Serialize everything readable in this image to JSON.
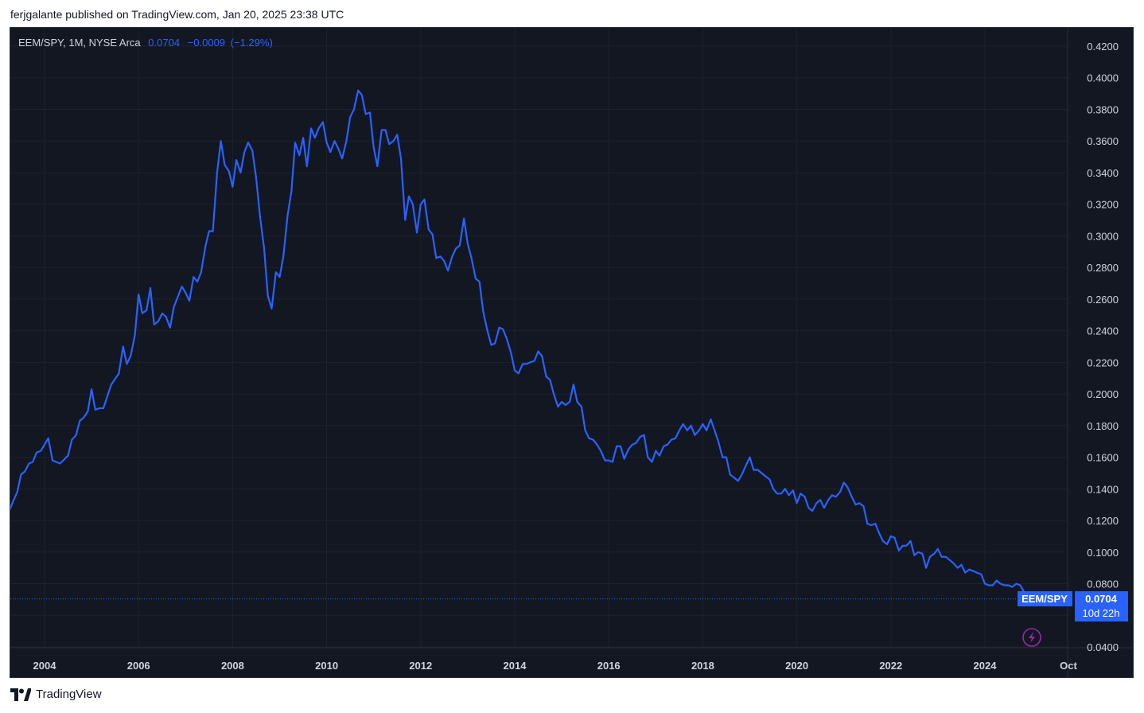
{
  "header": {
    "published_text": "ferjgalante published on TradingView.com, Jan 20, 2025 23:38 UTC"
  },
  "legend": {
    "symbol": "EEM/SPY, 1M, NYSE Arca",
    "last": "0.0704",
    "change": "−0.0009",
    "change_pct": "(−1.29%)"
  },
  "price_label": {
    "symbol": "EEM/SPY",
    "value": "0.0704",
    "countdown": "10d 22h"
  },
  "footer": {
    "brand": "TradingView"
  },
  "colors": {
    "background": "#131722",
    "line": "#2962ff",
    "grid": "#1e222d",
    "text": "#d1d4dc"
  },
  "chart_data": {
    "type": "line",
    "title": "",
    "xlabel": "",
    "ylabel": "",
    "xlim": [
      2003.25,
      2025.75
    ],
    "ylim": [
      0.04,
      0.43
    ],
    "y_ticks": [
      "0.4200",
      "0.4000",
      "0.3800",
      "0.3600",
      "0.3400",
      "0.3200",
      "0.3000",
      "0.2800",
      "0.2600",
      "0.2400",
      "0.2200",
      "0.2000",
      "0.1800",
      "0.1600",
      "0.1400",
      "0.1200",
      "0.1000",
      "0.0800",
      "0.0600",
      "0.0400"
    ],
    "x_ticks": [
      {
        "label": "2004",
        "x": 2004
      },
      {
        "label": "2006",
        "x": 2006
      },
      {
        "label": "2008",
        "x": 2008
      },
      {
        "label": "2010",
        "x": 2010
      },
      {
        "label": "2012",
        "x": 2012
      },
      {
        "label": "2014",
        "x": 2014
      },
      {
        "label": "2016",
        "x": 2016
      },
      {
        "label": "2018",
        "x": 2018
      },
      {
        "label": "2020",
        "x": 2020
      },
      {
        "label": "2022",
        "x": 2022
      },
      {
        "label": "2024",
        "x": 2024
      },
      {
        "label": "Oct",
        "x": 2025.75
      }
    ],
    "last_value": 0.0704,
    "grid": true,
    "series": [
      {
        "color": "#2962ff",
        "points": [
          [
            2003.25,
            0.126
          ],
          [
            2003.33,
            0.132
          ],
          [
            2003.42,
            0.138
          ],
          [
            2003.5,
            0.149
          ],
          [
            2003.58,
            0.151
          ],
          [
            2003.67,
            0.156
          ],
          [
            2003.75,
            0.157
          ],
          [
            2003.83,
            0.163
          ],
          [
            2003.92,
            0.164
          ],
          [
            2004.0,
            0.168
          ],
          [
            2004.08,
            0.172
          ],
          [
            2004.17,
            0.158
          ],
          [
            2004.33,
            0.156
          ],
          [
            2004.5,
            0.161
          ],
          [
            2004.58,
            0.171
          ],
          [
            2004.67,
            0.174
          ],
          [
            2004.75,
            0.183
          ],
          [
            2004.83,
            0.185
          ],
          [
            2004.92,
            0.189
          ],
          [
            2005.0,
            0.203
          ],
          [
            2005.08,
            0.19
          ],
          [
            2005.17,
            0.191
          ],
          [
            2005.25,
            0.191
          ],
          [
            2005.42,
            0.206
          ],
          [
            2005.58,
            0.213
          ],
          [
            2005.67,
            0.23
          ],
          [
            2005.75,
            0.219
          ],
          [
            2005.83,
            0.224
          ],
          [
            2005.92,
            0.237
          ],
          [
            2006.0,
            0.263
          ],
          [
            2006.08,
            0.251
          ],
          [
            2006.17,
            0.253
          ],
          [
            2006.25,
            0.267
          ],
          [
            2006.33,
            0.244
          ],
          [
            2006.42,
            0.246
          ],
          [
            2006.5,
            0.251
          ],
          [
            2006.58,
            0.249
          ],
          [
            2006.67,
            0.242
          ],
          [
            2006.75,
            0.255
          ],
          [
            2006.92,
            0.268
          ],
          [
            2007.0,
            0.264
          ],
          [
            2007.08,
            0.259
          ],
          [
            2007.17,
            0.274
          ],
          [
            2007.25,
            0.271
          ],
          [
            2007.33,
            0.277
          ],
          [
            2007.42,
            0.293
          ],
          [
            2007.5,
            0.303
          ],
          [
            2007.58,
            0.303
          ],
          [
            2007.67,
            0.34
          ],
          [
            2007.75,
            0.36
          ],
          [
            2007.83,
            0.345
          ],
          [
            2007.92,
            0.341
          ],
          [
            2008.0,
            0.331
          ],
          [
            2008.08,
            0.348
          ],
          [
            2008.17,
            0.34
          ],
          [
            2008.25,
            0.353
          ],
          [
            2008.33,
            0.359
          ],
          [
            2008.42,
            0.354
          ],
          [
            2008.5,
            0.337
          ],
          [
            2008.58,
            0.313
          ],
          [
            2008.67,
            0.292
          ],
          [
            2008.75,
            0.262
          ],
          [
            2008.83,
            0.254
          ],
          [
            2008.92,
            0.277
          ],
          [
            2009.0,
            0.274
          ],
          [
            2009.08,
            0.287
          ],
          [
            2009.17,
            0.313
          ],
          [
            2009.25,
            0.328
          ],
          [
            2009.33,
            0.359
          ],
          [
            2009.42,
            0.351
          ],
          [
            2009.5,
            0.362
          ],
          [
            2009.58,
            0.344
          ],
          [
            2009.67,
            0.368
          ],
          [
            2009.75,
            0.362
          ],
          [
            2009.83,
            0.368
          ],
          [
            2009.92,
            0.372
          ],
          [
            2010.0,
            0.359
          ],
          [
            2010.08,
            0.353
          ],
          [
            2010.17,
            0.36
          ],
          [
            2010.25,
            0.355
          ],
          [
            2010.33,
            0.349
          ],
          [
            2010.42,
            0.36
          ],
          [
            2010.5,
            0.375
          ],
          [
            2010.58,
            0.38
          ],
          [
            2010.67,
            0.392
          ],
          [
            2010.75,
            0.389
          ],
          [
            2010.83,
            0.377
          ],
          [
            2010.92,
            0.378
          ],
          [
            2011.0,
            0.356
          ],
          [
            2011.08,
            0.344
          ],
          [
            2011.17,
            0.367
          ],
          [
            2011.25,
            0.367
          ],
          [
            2011.33,
            0.358
          ],
          [
            2011.42,
            0.36
          ],
          [
            2011.5,
            0.364
          ],
          [
            2011.58,
            0.349
          ],
          [
            2011.67,
            0.31
          ],
          [
            2011.75,
            0.325
          ],
          [
            2011.83,
            0.32
          ],
          [
            2011.92,
            0.302
          ],
          [
            2012.0,
            0.32
          ],
          [
            2012.08,
            0.323
          ],
          [
            2012.17,
            0.304
          ],
          [
            2012.25,
            0.301
          ],
          [
            2012.33,
            0.286
          ],
          [
            2012.42,
            0.287
          ],
          [
            2012.5,
            0.284
          ],
          [
            2012.58,
            0.278
          ],
          [
            2012.67,
            0.287
          ],
          [
            2012.75,
            0.292
          ],
          [
            2012.83,
            0.294
          ],
          [
            2012.92,
            0.311
          ],
          [
            2013.0,
            0.295
          ],
          [
            2013.08,
            0.286
          ],
          [
            2013.17,
            0.273
          ],
          [
            2013.25,
            0.271
          ],
          [
            2013.33,
            0.252
          ],
          [
            2013.42,
            0.24
          ],
          [
            2013.5,
            0.231
          ],
          [
            2013.58,
            0.232
          ],
          [
            2013.67,
            0.242
          ],
          [
            2013.75,
            0.241
          ],
          [
            2013.83,
            0.235
          ],
          [
            2013.92,
            0.226
          ],
          [
            2014.0,
            0.215
          ],
          [
            2014.08,
            0.213
          ],
          [
            2014.17,
            0.219
          ],
          [
            2014.25,
            0.219
          ],
          [
            2014.33,
            0.22
          ],
          [
            2014.42,
            0.221
          ],
          [
            2014.5,
            0.227
          ],
          [
            2014.58,
            0.224
          ],
          [
            2014.67,
            0.211
          ],
          [
            2014.75,
            0.209
          ],
          [
            2014.83,
            0.2
          ],
          [
            2014.92,
            0.192
          ],
          [
            2015.0,
            0.195
          ],
          [
            2015.08,
            0.193
          ],
          [
            2015.17,
            0.195
          ],
          [
            2015.25,
            0.206
          ],
          [
            2015.33,
            0.195
          ],
          [
            2015.42,
            0.192
          ],
          [
            2015.5,
            0.177
          ],
          [
            2015.58,
            0.172
          ],
          [
            2015.67,
            0.171
          ],
          [
            2015.75,
            0.168
          ],
          [
            2015.83,
            0.164
          ],
          [
            2015.92,
            0.158
          ],
          [
            2016.0,
            0.158
          ],
          [
            2016.08,
            0.157
          ],
          [
            2016.17,
            0.167
          ],
          [
            2016.25,
            0.167
          ],
          [
            2016.33,
            0.159
          ],
          [
            2016.42,
            0.165
          ],
          [
            2016.5,
            0.168
          ],
          [
            2016.58,
            0.169
          ],
          [
            2016.67,
            0.173
          ],
          [
            2016.75,
            0.174
          ],
          [
            2016.83,
            0.16
          ],
          [
            2016.92,
            0.157
          ],
          [
            2017.0,
            0.164
          ],
          [
            2017.08,
            0.161
          ],
          [
            2017.17,
            0.167
          ],
          [
            2017.25,
            0.168
          ],
          [
            2017.33,
            0.171
          ],
          [
            2017.42,
            0.172
          ],
          [
            2017.5,
            0.177
          ],
          [
            2017.58,
            0.181
          ],
          [
            2017.67,
            0.177
          ],
          [
            2017.75,
            0.18
          ],
          [
            2017.83,
            0.174
          ],
          [
            2017.92,
            0.177
          ],
          [
            2018.0,
            0.181
          ],
          [
            2018.08,
            0.177
          ],
          [
            2018.17,
            0.184
          ],
          [
            2018.25,
            0.177
          ],
          [
            2018.33,
            0.17
          ],
          [
            2018.42,
            0.16
          ],
          [
            2018.5,
            0.16
          ],
          [
            2018.58,
            0.149
          ],
          [
            2018.67,
            0.147
          ],
          [
            2018.75,
            0.145
          ],
          [
            2018.83,
            0.149
          ],
          [
            2018.92,
            0.155
          ],
          [
            2019.0,
            0.16
          ],
          [
            2019.08,
            0.152
          ],
          [
            2019.17,
            0.152
          ],
          [
            2019.25,
            0.15
          ],
          [
            2019.33,
            0.148
          ],
          [
            2019.42,
            0.146
          ],
          [
            2019.5,
            0.14
          ],
          [
            2019.58,
            0.137
          ],
          [
            2019.67,
            0.137
          ],
          [
            2019.75,
            0.14
          ],
          [
            2019.83,
            0.136
          ],
          [
            2019.92,
            0.139
          ],
          [
            2020.0,
            0.131
          ],
          [
            2020.08,
            0.137
          ],
          [
            2020.17,
            0.135
          ],
          [
            2020.25,
            0.128
          ],
          [
            2020.33,
            0.126
          ],
          [
            2020.42,
            0.131
          ],
          [
            2020.5,
            0.133
          ],
          [
            2020.58,
            0.128
          ],
          [
            2020.67,
            0.133
          ],
          [
            2020.75,
            0.136
          ],
          [
            2020.83,
            0.135
          ],
          [
            2020.92,
            0.138
          ],
          [
            2021.0,
            0.144
          ],
          [
            2021.08,
            0.141
          ],
          [
            2021.17,
            0.135
          ],
          [
            2021.25,
            0.13
          ],
          [
            2021.33,
            0.131
          ],
          [
            2021.42,
            0.129
          ],
          [
            2021.5,
            0.118
          ],
          [
            2021.58,
            0.117
          ],
          [
            2021.67,
            0.118
          ],
          [
            2021.75,
            0.112
          ],
          [
            2021.83,
            0.107
          ],
          [
            2021.92,
            0.105
          ],
          [
            2022.0,
            0.11
          ],
          [
            2022.08,
            0.109
          ],
          [
            2022.17,
            0.101
          ],
          [
            2022.25,
            0.104
          ],
          [
            2022.33,
            0.104
          ],
          [
            2022.42,
            0.107
          ],
          [
            2022.5,
            0.098
          ],
          [
            2022.58,
            0.1
          ],
          [
            2022.67,
            0.099
          ],
          [
            2022.75,
            0.09
          ],
          [
            2022.83,
            0.097
          ],
          [
            2022.92,
            0.099
          ],
          [
            2023.0,
            0.102
          ],
          [
            2023.08,
            0.097
          ],
          [
            2023.17,
            0.097
          ],
          [
            2023.25,
            0.095
          ],
          [
            2023.33,
            0.093
          ],
          [
            2023.42,
            0.09
          ],
          [
            2023.5,
            0.092
          ],
          [
            2023.58,
            0.087
          ],
          [
            2023.67,
            0.089
          ],
          [
            2023.75,
            0.088
          ],
          [
            2023.83,
            0.087
          ],
          [
            2023.92,
            0.086
          ],
          [
            2024.0,
            0.08
          ],
          [
            2024.08,
            0.079
          ],
          [
            2024.17,
            0.079
          ],
          [
            2024.25,
            0.082
          ],
          [
            2024.33,
            0.08
          ],
          [
            2024.42,
            0.079
          ],
          [
            2024.5,
            0.079
          ],
          [
            2024.58,
            0.078
          ],
          [
            2024.67,
            0.08
          ],
          [
            2024.75,
            0.079
          ],
          [
            2024.83,
            0.075
          ],
          [
            2024.92,
            0.0713
          ],
          [
            2025.0,
            0.0704
          ]
        ]
      }
    ]
  }
}
